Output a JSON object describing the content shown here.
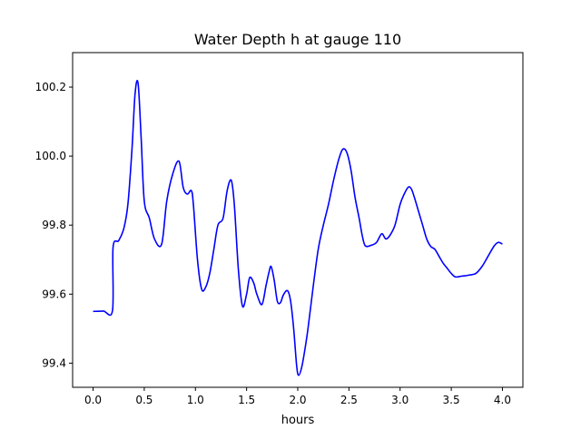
{
  "chart_data": {
    "type": "line",
    "title": "Water Depth h at gauge 110",
    "xlabel": "hours",
    "ylabel": "",
    "xlim": [
      -0.2,
      4.2
    ],
    "ylim": [
      99.33,
      100.3
    ],
    "grid": false,
    "legend": "none",
    "x_ticks": [
      0.0,
      0.5,
      1.0,
      1.5,
      2.0,
      2.5,
      3.0,
      3.5,
      4.0
    ],
    "x_tick_labels": [
      "0.0",
      "0.5",
      "1.0",
      "1.5",
      "2.0",
      "2.5",
      "3.0",
      "3.5",
      "4.0"
    ],
    "y_ticks": [
      99.4,
      99.6,
      99.8,
      100.0,
      100.2
    ],
    "y_tick_labels": [
      "99.4",
      "99.6",
      "99.8",
      "100.0",
      "100.2"
    ],
    "series": [
      {
        "name": "",
        "color": "#0000ff",
        "x": [
          0.0,
          0.1,
          0.19,
          0.195,
          0.25,
          0.3,
          0.34,
          0.38,
          0.41,
          0.44,
          0.47,
          0.5,
          0.55,
          0.6,
          0.67,
          0.72,
          0.78,
          0.84,
          0.88,
          0.92,
          0.96,
          0.98,
          1.02,
          1.06,
          1.1,
          1.14,
          1.18,
          1.22,
          1.27,
          1.31,
          1.35,
          1.38,
          1.42,
          1.46,
          1.5,
          1.53,
          1.57,
          1.6,
          1.65,
          1.69,
          1.72,
          1.74,
          1.77,
          1.8,
          1.83,
          1.86,
          1.9,
          1.93,
          1.96,
          1.99,
          2.01,
          2.04,
          2.07,
          2.1,
          2.15,
          2.2,
          2.25,
          2.3,
          2.35,
          2.4,
          2.44,
          2.48,
          2.52,
          2.56,
          2.6,
          2.63,
          2.66,
          2.72,
          2.77,
          2.82,
          2.86,
          2.9,
          2.95,
          3.0,
          3.04,
          3.08,
          3.11,
          3.14,
          3.18,
          3.22,
          3.26,
          3.3,
          3.34,
          3.38,
          3.42,
          3.46,
          3.5,
          3.54,
          3.6,
          3.67,
          3.74,
          3.8,
          3.86,
          3.92,
          3.96,
          4.0
        ],
        "y": [
          99.55,
          99.551,
          99.553,
          99.735,
          99.755,
          99.79,
          99.86,
          100.02,
          100.18,
          100.21,
          100.05,
          99.87,
          99.82,
          99.76,
          99.745,
          99.87,
          99.95,
          99.985,
          99.91,
          99.89,
          99.9,
          99.86,
          99.7,
          99.615,
          99.62,
          99.66,
          99.73,
          99.8,
          99.82,
          99.9,
          99.93,
          99.86,
          99.67,
          99.565,
          99.6,
          99.648,
          99.632,
          99.6,
          99.57,
          99.625,
          99.665,
          99.68,
          99.64,
          99.58,
          99.575,
          99.598,
          99.61,
          99.58,
          99.5,
          99.39,
          99.365,
          99.39,
          99.44,
          99.5,
          99.62,
          99.73,
          99.8,
          99.86,
          99.93,
          99.99,
          100.02,
          100.01,
          99.96,
          99.88,
          99.82,
          99.77,
          99.74,
          99.742,
          99.75,
          99.775,
          99.76,
          99.77,
          99.8,
          99.86,
          99.89,
          99.91,
          99.905,
          99.88,
          99.84,
          99.8,
          99.76,
          99.738,
          99.73,
          99.71,
          99.69,
          99.675,
          99.66,
          99.65,
          99.652,
          99.655,
          99.66,
          99.68,
          99.71,
          99.74,
          99.75,
          99.745
        ]
      }
    ]
  }
}
